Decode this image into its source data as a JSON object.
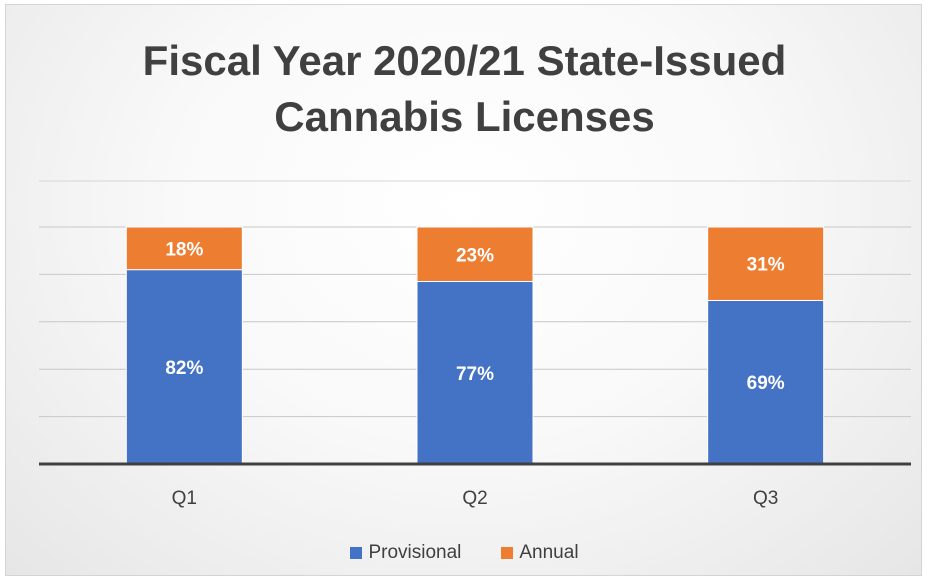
{
  "chart_data": {
    "type": "bar",
    "stacked": true,
    "title": "Fiscal Year 2020/21 State-Issued Cannabis Licenses",
    "title_lines": [
      "Fiscal Year 2020/21 State-Issued",
      "Cannabis Licenses"
    ],
    "categories": [
      "Q1",
      "Q2",
      "Q3"
    ],
    "series": [
      {
        "name": "Provisional",
        "values": [
          82,
          77,
          69
        ],
        "labels": [
          "82%",
          "77%",
          "69%"
        ],
        "color": "#4472c4"
      },
      {
        "name": "Annual",
        "values": [
          18,
          23,
          31
        ],
        "labels": [
          "18%",
          "23%",
          "31%"
        ],
        "color": "#ed7d31"
      }
    ],
    "ylim": [
      0,
      100
    ],
    "grid": true,
    "legend_position": "bottom",
    "axis_color": "#404040",
    "data_label_color": "#ffffff"
  }
}
